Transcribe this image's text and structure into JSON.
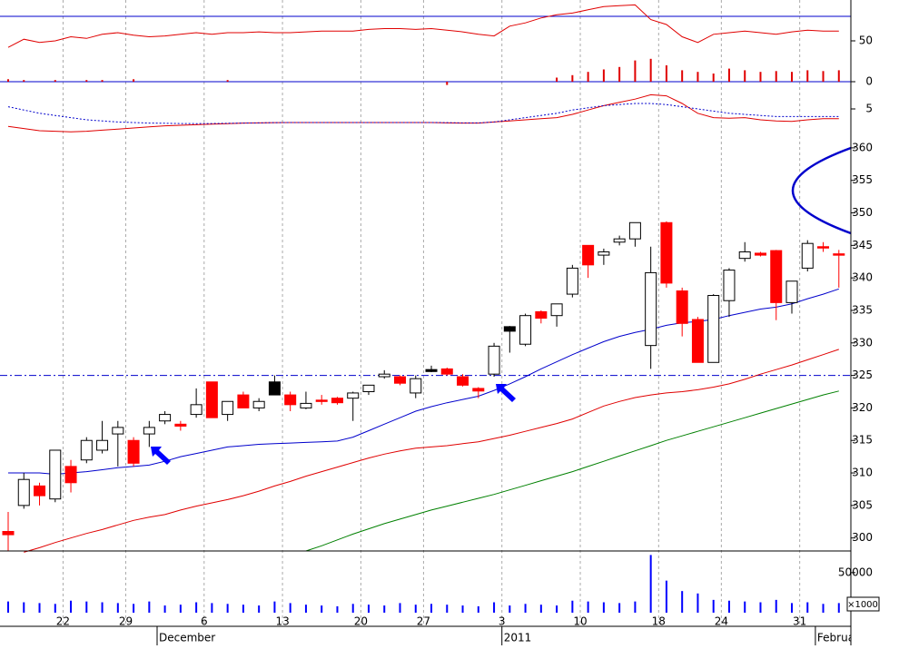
{
  "chart_data": [
    {
      "type": "line",
      "ylim": [
        0,
        100
      ],
      "yticks": [
        0,
        50
      ],
      "hline": 80,
      "hline_color": "#0000cc",
      "series": [
        {
          "color": "#e00000",
          "values": [
            42,
            52,
            48,
            50,
            55,
            53,
            58,
            60,
            57,
            55,
            56,
            58,
            60,
            58,
            60,
            60,
            61,
            60,
            60,
            61,
            62,
            62,
            62,
            64,
            65,
            65,
            64,
            65,
            63,
            61,
            58,
            56,
            68,
            72,
            78,
            82,
            84,
            88,
            92,
            93,
            94,
            76,
            70,
            55,
            48,
            58,
            60,
            62,
            60,
            58,
            61,
            63,
            62,
            62
          ]
        }
      ],
      "bars": {
        "color": "#e00000",
        "values": [
          3,
          2,
          0,
          2,
          0,
          2,
          2,
          0,
          3,
          0,
          0,
          0,
          0,
          0,
          2,
          0,
          0,
          0,
          0,
          0,
          0,
          0,
          0,
          0,
          0,
          0,
          0,
          0,
          -4,
          0,
          0,
          0,
          0,
          0,
          0,
          5,
          8,
          12,
          15,
          18,
          26,
          28,
          20,
          14,
          12,
          10,
          16,
          14,
          12,
          13,
          12,
          14,
          13,
          14
        ]
      }
    },
    {
      "type": "line",
      "ylim": [
        2.5,
        7.5
      ],
      "yticks": [
        5
      ],
      "series": [
        {
          "color": "#e00000",
          "values": [
            3.4,
            3.2,
            3.0,
            2.95,
            2.9,
            2.95,
            3.05,
            3.15,
            3.25,
            3.35,
            3.45,
            3.5,
            3.55,
            3.6,
            3.65,
            3.7,
            3.72,
            3.74,
            3.75,
            3.75,
            3.75,
            3.75,
            3.75,
            3.75,
            3.75,
            3.75,
            3.75,
            3.75,
            3.72,
            3.7,
            3.7,
            3.8,
            3.9,
            4.0,
            4.1,
            4.2,
            4.5,
            4.9,
            5.3,
            5.6,
            5.9,
            6.3,
            6.2,
            5.5,
            4.6,
            4.2,
            4.15,
            4.2,
            4.0,
            3.9,
            3.85,
            4.0,
            4.1,
            4.1
          ]
        },
        {
          "color": "#0000cc",
          "dashed": true,
          "values": [
            5.2,
            4.9,
            4.6,
            4.4,
            4.2,
            4.0,
            3.9,
            3.8,
            3.75,
            3.7,
            3.68,
            3.66,
            3.65,
            3.66,
            3.68,
            3.7,
            3.72,
            3.74,
            3.75,
            3.75,
            3.75,
            3.75,
            3.75,
            3.75,
            3.75,
            3.75,
            3.75,
            3.75,
            3.74,
            3.72,
            3.72,
            3.8,
            4.0,
            4.2,
            4.4,
            4.6,
            4.9,
            5.1,
            5.3,
            5.4,
            5.5,
            5.5,
            5.4,
            5.2,
            5.0,
            4.8,
            4.6,
            4.5,
            4.4,
            4.3,
            4.3,
            4.3,
            4.3,
            4.3
          ]
        }
      ]
    },
    {
      "type": "candlestick",
      "ylim": [
        298,
        361.8
      ],
      "yticks": [
        300,
        305,
        310,
        315,
        320,
        325,
        330,
        335,
        340,
        345,
        350,
        355,
        360
      ],
      "hline": 325,
      "hline_color": "#0000cc",
      "open": [
        301,
        305,
        308,
        306,
        311,
        312,
        313.5,
        316,
        315,
        316,
        318,
        317.5,
        319,
        324,
        319,
        322,
        320,
        324,
        322,
        320,
        321.2,
        321.5,
        321.5,
        322.5,
        324.8,
        324.8,
        322.3,
        325.9,
        326,
        324.8,
        323,
        325.2,
        332.5,
        329.8,
        334.8,
        334.2,
        337.5,
        345,
        343.5,
        345.5,
        346,
        329.6,
        348.5,
        338,
        333.6,
        327,
        336.5,
        343,
        343.8,
        344.2,
        336.2,
        341.5,
        344.8,
        343.7
      ],
      "high": [
        304,
        310,
        308.5,
        313.5,
        312,
        315.5,
        318,
        318,
        315.5,
        318,
        319.5,
        318,
        323,
        324,
        321,
        322.5,
        321.5,
        325,
        322.5,
        322.5,
        322,
        321.7,
        322.5,
        323.5,
        325.8,
        325,
        325,
        326.5,
        326.2,
        325.2,
        323.2,
        330,
        332.6,
        334.5,
        335,
        336,
        342,
        345,
        344.5,
        346.5,
        348.5,
        344.8,
        348.7,
        338.5,
        334,
        337.5,
        341.5,
        345.5,
        344,
        344.3,
        339.5,
        345.8,
        345.5,
        344.3
      ],
      "low": [
        298,
        304.5,
        305,
        305.5,
        307,
        311.5,
        313,
        311,
        311,
        314,
        317.5,
        316.5,
        318.5,
        318.5,
        318,
        320,
        319.5,
        322,
        319.5,
        319.8,
        320.5,
        320.5,
        318,
        322,
        324.5,
        323.5,
        321.5,
        325.5,
        325,
        323.3,
        321.5,
        324.8,
        328.5,
        329.5,
        333,
        332.5,
        337,
        340,
        342,
        345,
        344.8,
        326,
        338.5,
        331,
        327,
        327,
        334,
        342.5,
        343.3,
        333.5,
        334.5,
        341,
        344,
        338.5
      ],
      "close": [
        300.5,
        309,
        306.5,
        313.5,
        308.5,
        315,
        315,
        317,
        311.5,
        317,
        319,
        317.2,
        320.5,
        318.5,
        321,
        320,
        321,
        322,
        320.5,
        320.7,
        321,
        320.8,
        322.3,
        323.5,
        325.2,
        323.8,
        324.5,
        325.6,
        325.2,
        323.5,
        322.6,
        329.5,
        331.8,
        334.2,
        333.8,
        336,
        341.5,
        342,
        344,
        346,
        348.5,
        340.8,
        339.2,
        333,
        327,
        337.3,
        341.2,
        344,
        343.5,
        336.2,
        339.5,
        345.3,
        344.6,
        343.5
      ],
      "fills": [
        "#ff0000",
        "#ffffff",
        "#ff0000",
        "#ffffff",
        "#ff0000",
        "#ffffff",
        "#ffffff",
        "#ffffff",
        "#ff0000",
        "#ffffff",
        "#ffffff",
        "#ff0000",
        "#ffffff",
        "#ff0000",
        "#ffffff",
        "#ff0000",
        "#ffffff",
        "#000000",
        "#ff0000",
        "#ffffff",
        "#ff0000",
        "#ff0000",
        "#ffffff",
        "#ffffff",
        "#ffffff",
        "#ff0000",
        "#ffffff",
        "#000000",
        "#ff0000",
        "#ff0000",
        "#ff0000",
        "#ffffff",
        "#000000",
        "#ffffff",
        "#ff0000",
        "#ffffff",
        "#ffffff",
        "#ff0000",
        "#ffffff",
        "#ffffff",
        "#ffffff",
        "#ffffff",
        "#ff0000",
        "#ff0000",
        "#ff0000",
        "#ffffff",
        "#ffffff",
        "#ffffff",
        "#ff0000",
        "#ff0000",
        "#ffffff",
        "#ffffff",
        "#ff0000",
        "#ff0000"
      ],
      "series": [
        {
          "color": "#0000cc",
          "values": [
            310,
            310,
            310,
            309.8,
            310,
            310.2,
            310.5,
            310.8,
            311,
            311.2,
            311.8,
            312.5,
            313,
            313.5,
            314,
            314.2,
            314.4,
            314.5,
            314.6,
            314.7,
            314.8,
            314.9,
            315.5,
            316.5,
            317.5,
            318.5,
            319.5,
            320.2,
            320.8,
            321.3,
            321.8,
            322.7,
            323.7,
            324.8,
            326,
            327.1,
            328.2,
            329.2,
            330.2,
            331,
            331.6,
            332.1,
            332.7,
            333.1,
            333.3,
            333.6,
            334.2,
            334.7,
            335.2,
            335.5,
            336,
            336.8,
            337.5,
            338.3
          ]
        },
        {
          "color": "#e00000",
          "values": [
            null,
            297.8,
            298.5,
            299.3,
            300,
            300.7,
            301.3,
            302,
            302.7,
            303.2,
            303.6,
            304.3,
            304.9,
            305.4,
            305.9,
            306.5,
            307.2,
            308,
            308.7,
            309.5,
            310.2,
            310.9,
            311.6,
            312.3,
            312.9,
            313.4,
            313.8,
            314,
            314.2,
            314.5,
            314.8,
            315.3,
            315.8,
            316.4,
            317,
            317.6,
            318.3,
            319.3,
            320.3,
            321,
            321.6,
            322,
            322.3,
            322.5,
            322.8,
            323.2,
            323.7,
            324.4,
            325.2,
            325.9,
            326.6,
            327.4,
            328.2,
            329
          ]
        },
        {
          "color": "#008000",
          "values": [
            null,
            null,
            null,
            null,
            null,
            null,
            null,
            null,
            null,
            null,
            null,
            null,
            null,
            null,
            null,
            null,
            null,
            null,
            null,
            298,
            298.8,
            299.7,
            300.6,
            301.4,
            302.2,
            302.9,
            303.6,
            304.3,
            304.9,
            305.5,
            306.1,
            306.7,
            307.4,
            308.1,
            308.8,
            309.5,
            310.2,
            311,
            311.8,
            312.6,
            313.4,
            314.2,
            315,
            315.7,
            316.4,
            317.1,
            317.8,
            318.5,
            319.2,
            319.9,
            320.6,
            321.3,
            322,
            322.6
          ]
        }
      ]
    },
    {
      "type": "bar",
      "ylim": [
        0,
        77000
      ],
      "yticks": [
        50000
      ],
      "color": "#0000ff",
      "unit_label": "×1000",
      "values": [
        14000,
        13000,
        12000,
        11000,
        15000,
        14000,
        13000,
        12000,
        11000,
        14000,
        9000,
        10000,
        13000,
        12000,
        11000,
        10000,
        9000,
        14000,
        12000,
        10000,
        9000,
        8000,
        11000,
        10000,
        9000,
        12000,
        10000,
        11000,
        10000,
        9000,
        8000,
        13000,
        9000,
        11000,
        10000,
        9000,
        15000,
        14000,
        13000,
        12000,
        14000,
        72000,
        40000,
        27000,
        24000,
        16000,
        15000,
        14000,
        13000,
        16000,
        12000,
        13000,
        11000,
        12000
      ],
      "categories": [
        null,
        null,
        null,
        null,
        "22",
        null,
        null,
        null,
        "29",
        null,
        null,
        null,
        null,
        "6",
        null,
        null,
        null,
        null,
        "13",
        null,
        null,
        null,
        null,
        "20",
        null,
        null,
        null,
        "27",
        null,
        null,
        null,
        null,
        "3",
        null,
        null,
        null,
        null,
        "10",
        null,
        null,
        null,
        null,
        "18",
        null,
        null,
        null,
        "24",
        null,
        null,
        null,
        null,
        "31",
        null,
        null
      ],
      "months": [
        null,
        null,
        null,
        null,
        null,
        null,
        null,
        null,
        null,
        null,
        "December",
        null,
        null,
        null,
        null,
        null,
        null,
        null,
        null,
        null,
        null,
        null,
        null,
        null,
        null,
        null,
        null,
        null,
        null,
        null,
        null,
        null,
        "2011",
        null,
        null,
        null,
        null,
        null,
        null,
        null,
        null,
        null,
        null,
        null,
        null,
        null,
        null,
        null,
        null,
        null,
        null,
        null,
        "Februa",
        null
      ]
    }
  ]
}
